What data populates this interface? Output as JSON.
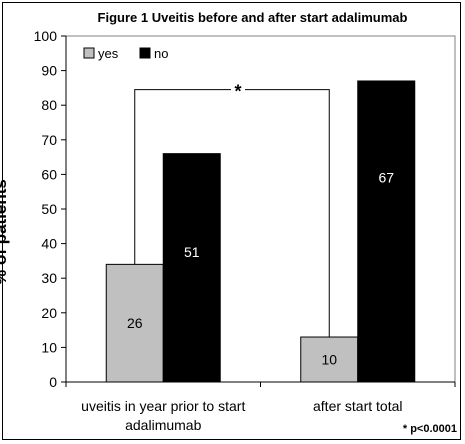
{
  "chart_data": {
    "type": "bar",
    "title": "Figure 1 Uveitis before and after start adalimumab",
    "ylabel": "% of patients",
    "xlabel": "",
    "categories": [
      "uveitis in year prior to start adalimumab",
      "after start total"
    ],
    "category_lines": [
      [
        "uveitis in year prior to start",
        "adalimumab"
      ],
      [
        "after start total"
      ]
    ],
    "series": [
      {
        "name": "yes",
        "color": "#c0c0c0",
        "values": [
          34,
          13
        ],
        "labels": [
          "26",
          "10"
        ]
      },
      {
        "name": "no",
        "color": "#000000",
        "values": [
          66,
          87
        ],
        "labels": [
          "51",
          "67"
        ]
      }
    ],
    "ylim": [
      0,
      100
    ],
    "yticks": [
      0,
      10,
      20,
      30,
      40,
      50,
      60,
      70,
      80,
      90,
      100
    ],
    "grid": false,
    "legend_position": "top-left",
    "significance": {
      "marker": "*",
      "between": [
        "uveitis in year prior to start adalimumab",
        "after start total"
      ]
    },
    "footnote": "* p<0.0001"
  }
}
